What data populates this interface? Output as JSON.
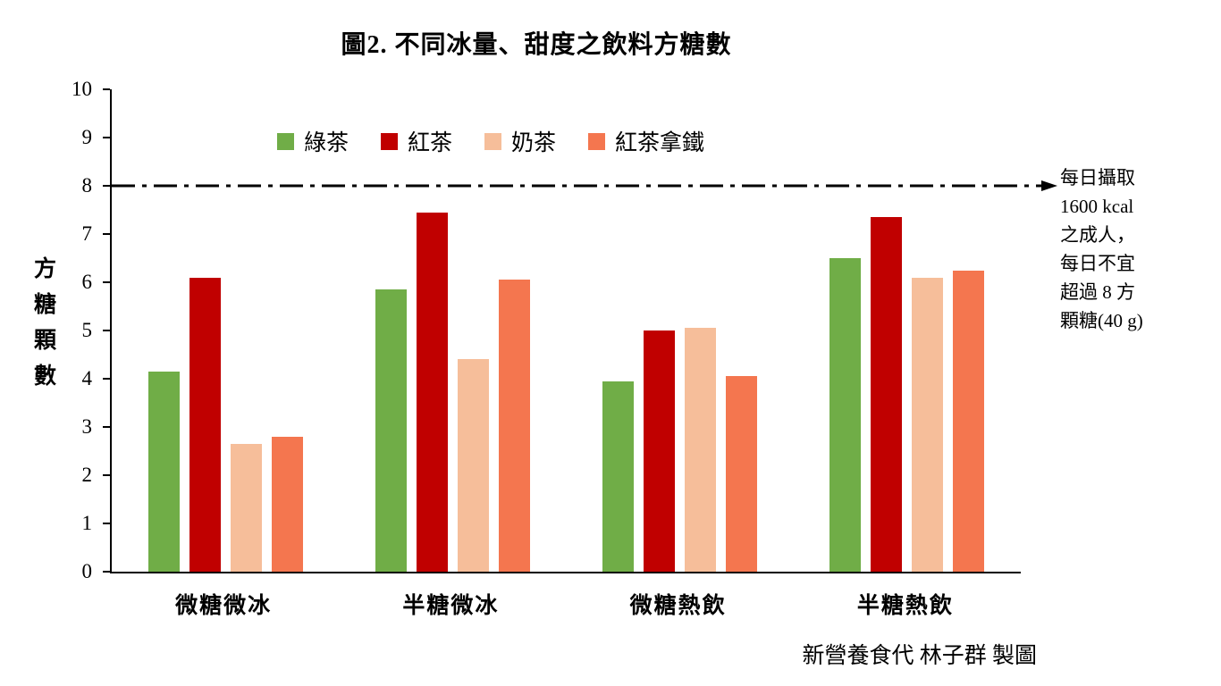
{
  "title": "圖2. 不同冰量、甜度之飲料方糖數",
  "y_axis_title": "方\n糖\n顆\n數",
  "credit": "新營養食代 林子群 製圖",
  "annotation": {
    "text": "每日攝取\n1600 kcal\n之成人，\n每日不宜\n超過 8 方\n顆糖(40 g)"
  },
  "chart_data": {
    "type": "bar",
    "title": "圖2. 不同冰量、甜度之飲料方糖數",
    "categories": [
      "微糖微冰",
      "半糖微冰",
      "微糖熱飲",
      "半糖熱飲"
    ],
    "series": [
      {
        "name": "綠茶",
        "color": "#70AD47",
        "values": [
          4.15,
          5.85,
          3.95,
          6.5
        ]
      },
      {
        "name": "紅茶",
        "color": "#C00000",
        "values": [
          6.1,
          7.45,
          5.0,
          7.35
        ]
      },
      {
        "name": "奶茶",
        "color": "#F6BE9A",
        "values": [
          2.65,
          4.4,
          5.05,
          6.1
        ]
      },
      {
        "name": "紅茶拿鐵",
        "color": "#F4764F",
        "values": [
          2.8,
          6.05,
          4.05,
          6.25
        ]
      }
    ],
    "xlabel": "",
    "ylabel": "方糖顆數",
    "ylim": [
      0,
      10
    ],
    "y_ticks": [
      10,
      9,
      8,
      7,
      6,
      5,
      4,
      3,
      2,
      1,
      0
    ],
    "grid": false,
    "legend_position": "top-inside",
    "reference_line": {
      "value": 8,
      "style": "dash-dot-arrow",
      "label": "每日攝取 1600 kcal 之成人，每日不宜超過 8 方顆糖(40 g)"
    }
  }
}
